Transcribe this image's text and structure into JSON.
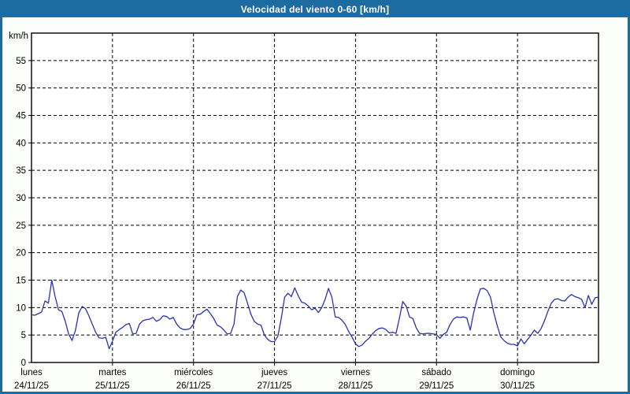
{
  "window": {
    "title": "Velocidad del viento 0-60 [km/h]"
  },
  "theme": {
    "titlebar_color": "#1c6ca1",
    "border_color": "#1c6ca1",
    "background_color": "#fbfefb",
    "plot_background": "#ffffff",
    "axis_color": "#000000",
    "grid_color": "#000000",
    "text_color": "#000000",
    "line_color": "#2a31b4"
  },
  "chart_data": {
    "type": "line",
    "title": "Velocidad del viento 0-60 [km/h]",
    "ylabel": "km/h",
    "xlabel": "",
    "ylim": [
      0,
      60
    ],
    "yticks": [
      0,
      5,
      10,
      15,
      20,
      25,
      30,
      35,
      40,
      45,
      50,
      55
    ],
    "grid": "dashed",
    "legend": "none",
    "points_per_day": 24,
    "days": [
      {
        "name": "lunes",
        "date": "24/11/25"
      },
      {
        "name": "martes",
        "date": "25/11/25"
      },
      {
        "name": "miércoles",
        "date": "26/11/25"
      },
      {
        "name": "jueves",
        "date": "27/11/25"
      },
      {
        "name": "viernes",
        "date": "28/11/25"
      },
      {
        "name": "sábado",
        "date": "29/11/25"
      },
      {
        "name": "domingo",
        "date": "30/11/25"
      }
    ],
    "series": [
      {
        "name": "Velocidad del viento",
        "unit": "km/h",
        "values": [
          8.7,
          8.6,
          8.9,
          9.2,
          11.2,
          10.8,
          15.0,
          12.0,
          9.6,
          9.3,
          7.5,
          5.2,
          4.0,
          5.8,
          9.0,
          10.2,
          9.8,
          8.5,
          7.0,
          5.5,
          4.5,
          4.4,
          4.6,
          2.5,
          3.9,
          5.5,
          6.0,
          6.4,
          6.9,
          7.1,
          5.2,
          5.3,
          7.0,
          7.6,
          7.8,
          7.9,
          8.2,
          7.5,
          7.8,
          8.5,
          8.4,
          7.9,
          8.2,
          7.0,
          6.3,
          6.0,
          6.0,
          6.2,
          7.0,
          8.7,
          8.8,
          9.3,
          9.7,
          8.9,
          8.0,
          6.8,
          6.5,
          5.9,
          5.2,
          5.3,
          7.0,
          12.0,
          13.2,
          12.7,
          10.8,
          8.8,
          7.5,
          7.0,
          6.8,
          5.0,
          4.2,
          3.8,
          3.8,
          4.8,
          8.0,
          11.9,
          12.6,
          12.0,
          13.6,
          12.2,
          11.0,
          10.8,
          10.3,
          9.6,
          9.9,
          9.1,
          10.0,
          11.5,
          13.5,
          11.9,
          8.3,
          8.2,
          7.7,
          6.9,
          5.6,
          4.6,
          3.4,
          2.9,
          3.2,
          3.9,
          4.4,
          5.2,
          5.8,
          6.2,
          6.3,
          6.0,
          5.4,
          5.5,
          5.3,
          8.0,
          11.1,
          10.3,
          8.3,
          8.0,
          6.3,
          5.3,
          5.2,
          5.3,
          5.3,
          5.2,
          5.1,
          4.4,
          5.1,
          5.5,
          6.9,
          7.9,
          8.3,
          8.2,
          8.3,
          8.1,
          5.9,
          9.0,
          11.5,
          13.4,
          13.5,
          13.1,
          11.9,
          9.0,
          6.7,
          4.7,
          4.0,
          3.5,
          3.3,
          3.3,
          3.0,
          4.3,
          3.4,
          4.2,
          5.0,
          5.9,
          5.3,
          6.2,
          7.6,
          9.3,
          10.8,
          11.5,
          11.6,
          11.3,
          11.2,
          11.9,
          12.4,
          12.0,
          11.8,
          11.5,
          10.0,
          12.2,
          10.6,
          11.8,
          11.9
        ]
      }
    ]
  }
}
